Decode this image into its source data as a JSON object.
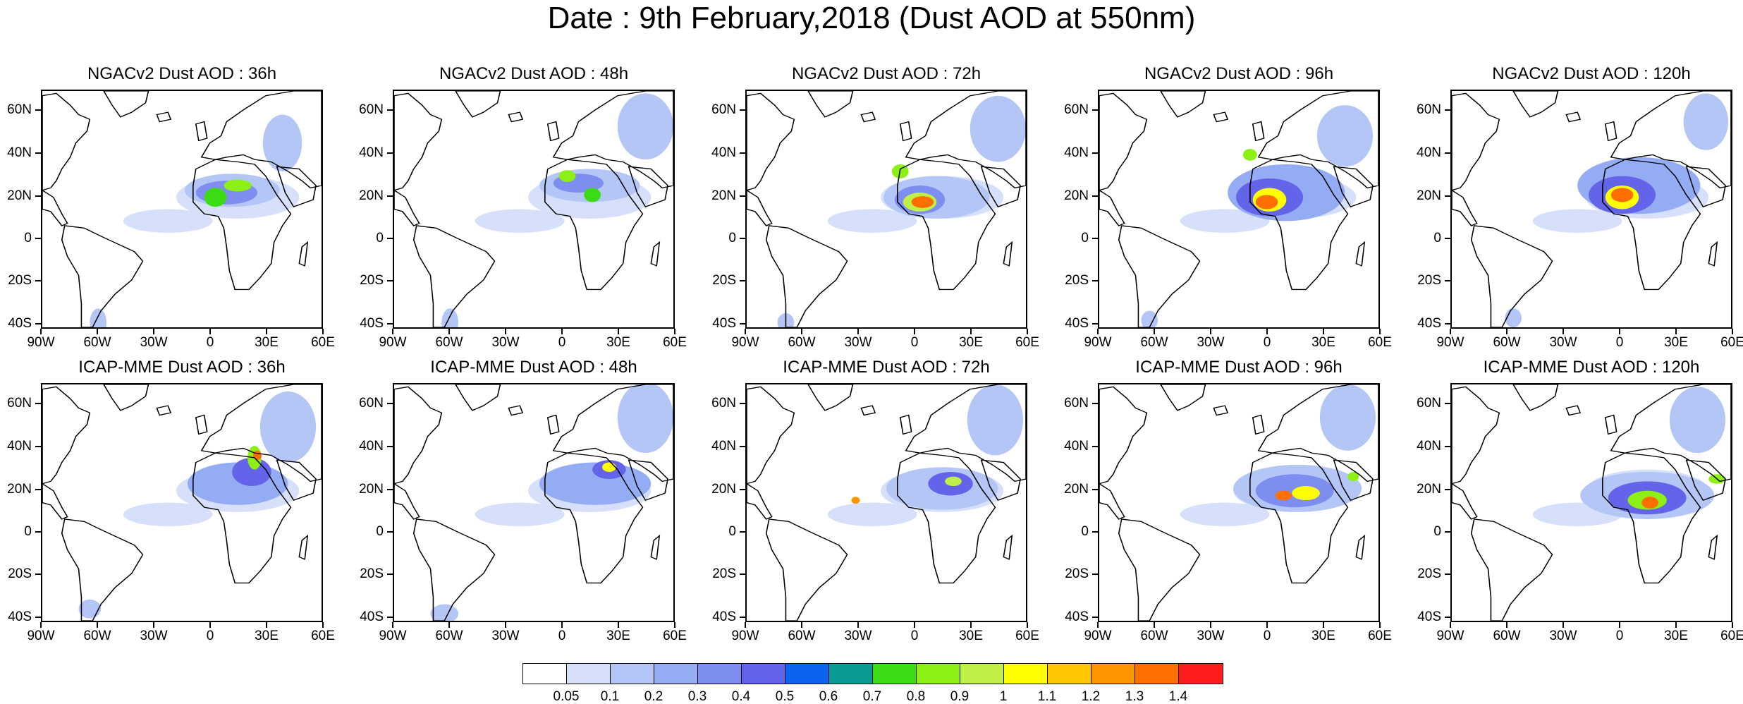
{
  "title": "Date : 9th February,2018 (Dust AOD at 550nm)",
  "axes": {
    "y_labels": [
      "60N",
      "40N",
      "20N",
      "0",
      "20S",
      "40S"
    ],
    "x_labels": [
      "90W",
      "60W",
      "30W",
      "0",
      "30E",
      "60E"
    ]
  },
  "panels": [
    {
      "title": "NGACv2 Dust AOD : 36h",
      "model": "NGACv2",
      "lead": "36h"
    },
    {
      "title": "NGACv2 Dust AOD : 48h",
      "model": "NGACv2",
      "lead": "48h"
    },
    {
      "title": "NGACv2 Dust AOD : 72h",
      "model": "NGACv2",
      "lead": "72h"
    },
    {
      "title": "NGACv2 Dust AOD : 96h",
      "model": "NGACv2",
      "lead": "96h"
    },
    {
      "title": "NGACv2 Dust AOD : 120h",
      "model": "NGACv2",
      "lead": "120h"
    },
    {
      "title": "ICAP-MME Dust AOD : 36h",
      "model": "ICAP-MME",
      "lead": "36h"
    },
    {
      "title": "ICAP-MME Dust AOD : 48h",
      "model": "ICAP-MME",
      "lead": "48h"
    },
    {
      "title": "ICAP-MME Dust AOD : 72h",
      "model": "ICAP-MME",
      "lead": "72h"
    },
    {
      "title": "ICAP-MME Dust AOD : 96h",
      "model": "ICAP-MME",
      "lead": "96h"
    },
    {
      "title": "ICAP-MME Dust AOD : 120h",
      "model": "ICAP-MME",
      "lead": "120h"
    }
  ],
  "colorbar": {
    "labels": [
      "0.05",
      "0.1",
      "0.2",
      "0.3",
      "0.4",
      "0.5",
      "0.6",
      "0.7",
      "0.8",
      "0.9",
      "1",
      "1.1",
      "1.2",
      "1.3",
      "1.4"
    ],
    "colors": [
      "#ffffff",
      "#d6e0fa",
      "#b4c6f6",
      "#94acf4",
      "#7d8ef0",
      "#6464ea",
      "#0a64f0",
      "#0a9a96",
      "#3cdc14",
      "#8cf014",
      "#c0f046",
      "#ffff00",
      "#ffc800",
      "#ff9600",
      "#ff6e00",
      "#ff1e1e"
    ]
  }
}
